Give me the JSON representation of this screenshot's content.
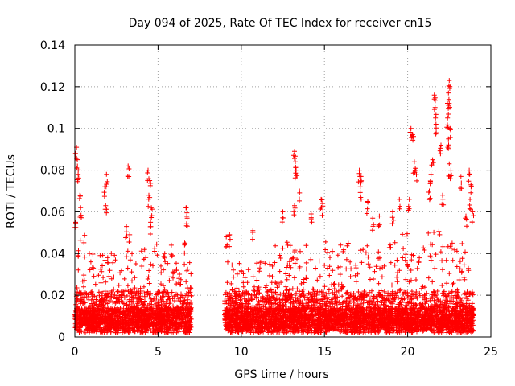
{
  "chart_data": {
    "type": "scatter",
    "title": "Day 094 of 2025, Rate Of TEC Index for receiver cn15",
    "xlabel": "GPS time / hours",
    "ylabel": "ROTI / TECUs",
    "xlim": [
      0,
      25
    ],
    "ylim": [
      0,
      0.14
    ],
    "xticks": [
      0,
      5,
      10,
      15,
      20,
      25
    ],
    "xtick_labels": [
      "0",
      "5",
      "10",
      "15",
      "20",
      "25"
    ],
    "yticks": [
      0,
      0.02,
      0.04,
      0.06,
      0.08,
      0.1,
      0.12,
      0.14
    ],
    "ytick_labels": [
      "0",
      "0.02",
      "0.04",
      "0.06",
      "0.08",
      "0.1",
      "0.12",
      "0.14"
    ],
    "grid": true,
    "marker": "+",
    "color": "#ff0000",
    "coverage": [
      [
        0,
        7.0
      ],
      [
        9.0,
        24.0
      ]
    ],
    "notable_points": [
      {
        "x": 0.1,
        "y": 0.091
      },
      {
        "x": 0.15,
        "y": 0.085
      },
      {
        "x": 0.2,
        "y": 0.078
      },
      {
        "x": 0.05,
        "y": 0.055
      },
      {
        "x": 0.3,
        "y": 0.068
      },
      {
        "x": 0.35,
        "y": 0.062
      },
      {
        "x": 1.9,
        "y": 0.078
      },
      {
        "x": 1.8,
        "y": 0.072
      },
      {
        "x": 1.85,
        "y": 0.063
      },
      {
        "x": 3.2,
        "y": 0.082
      },
      {
        "x": 3.1,
        "y": 0.053
      },
      {
        "x": 3.3,
        "y": 0.049
      },
      {
        "x": 4.4,
        "y": 0.08
      },
      {
        "x": 4.5,
        "y": 0.075
      },
      {
        "x": 4.45,
        "y": 0.068
      },
      {
        "x": 4.6,
        "y": 0.062
      },
      {
        "x": 4.55,
        "y": 0.055
      },
      {
        "x": 6.7,
        "y": 0.062
      },
      {
        "x": 6.75,
        "y": 0.057
      },
      {
        "x": 6.6,
        "y": 0.045
      },
      {
        "x": 5.8,
        "y": 0.044
      },
      {
        "x": 5.4,
        "y": 0.04
      },
      {
        "x": 9.3,
        "y": 0.049
      },
      {
        "x": 9.1,
        "y": 0.048
      },
      {
        "x": 10.7,
        "y": 0.051
      },
      {
        "x": 13.2,
        "y": 0.089
      },
      {
        "x": 13.25,
        "y": 0.084
      },
      {
        "x": 13.3,
        "y": 0.08
      },
      {
        "x": 13.5,
        "y": 0.07
      },
      {
        "x": 13.2,
        "y": 0.063
      },
      {
        "x": 12.5,
        "y": 0.06
      },
      {
        "x": 14.2,
        "y": 0.059
      },
      {
        "x": 14.8,
        "y": 0.066
      },
      {
        "x": 14.9,
        "y": 0.064
      },
      {
        "x": 17.1,
        "y": 0.08
      },
      {
        "x": 17.2,
        "y": 0.077
      },
      {
        "x": 17.15,
        "y": 0.072
      },
      {
        "x": 17.9,
        "y": 0.057
      },
      {
        "x": 17.6,
        "y": 0.065
      },
      {
        "x": 18.3,
        "y": 0.058
      },
      {
        "x": 19.1,
        "y": 0.06
      },
      {
        "x": 19.5,
        "y": 0.066
      },
      {
        "x": 20.2,
        "y": 0.1
      },
      {
        "x": 20.3,
        "y": 0.097
      },
      {
        "x": 20.4,
        "y": 0.084
      },
      {
        "x": 20.5,
        "y": 0.08
      },
      {
        "x": 20.1,
        "y": 0.066
      },
      {
        "x": 21.6,
        "y": 0.116
      },
      {
        "x": 21.65,
        "y": 0.11
      },
      {
        "x": 21.7,
        "y": 0.102
      },
      {
        "x": 21.5,
        "y": 0.085
      },
      {
        "x": 21.4,
        "y": 0.078
      },
      {
        "x": 21.3,
        "y": 0.07
      },
      {
        "x": 22.0,
        "y": 0.092
      },
      {
        "x": 22.1,
        "y": 0.068
      },
      {
        "x": 22.5,
        "y": 0.123
      },
      {
        "x": 22.45,
        "y": 0.117
      },
      {
        "x": 22.5,
        "y": 0.112
      },
      {
        "x": 22.4,
        "y": 0.105
      },
      {
        "x": 22.55,
        "y": 0.1
      },
      {
        "x": 22.45,
        "y": 0.095
      },
      {
        "x": 22.5,
        "y": 0.083
      },
      {
        "x": 22.6,
        "y": 0.08
      },
      {
        "x": 23.2,
        "y": 0.077
      },
      {
        "x": 23.7,
        "y": 0.08
      },
      {
        "x": 23.8,
        "y": 0.073
      },
      {
        "x": 23.75,
        "y": 0.066
      },
      {
        "x": 23.9,
        "y": 0.06
      },
      {
        "x": 23.5,
        "y": 0.058
      }
    ],
    "dense_bands": [
      {
        "x_range": [
          0,
          1.0
        ],
        "typical_max": 0.045
      },
      {
        "x_range": [
          1.0,
          3.0
        ],
        "typical_max": 0.035
      },
      {
        "x_range": [
          3.0,
          5.0
        ],
        "typical_max": 0.04
      },
      {
        "x_range": [
          5.0,
          7.0
        ],
        "typical_max": 0.03
      },
      {
        "x_range": [
          9.0,
          12.0
        ],
        "typical_max": 0.03
      },
      {
        "x_range": [
          12.0,
          15.0
        ],
        "typical_max": 0.04
      },
      {
        "x_range": [
          15.0,
          19.0
        ],
        "typical_max": 0.04
      },
      {
        "x_range": [
          19.0,
          22.0
        ],
        "typical_max": 0.045
      },
      {
        "x_range": [
          22.0,
          24.0
        ],
        "typical_max": 0.04
      }
    ]
  }
}
